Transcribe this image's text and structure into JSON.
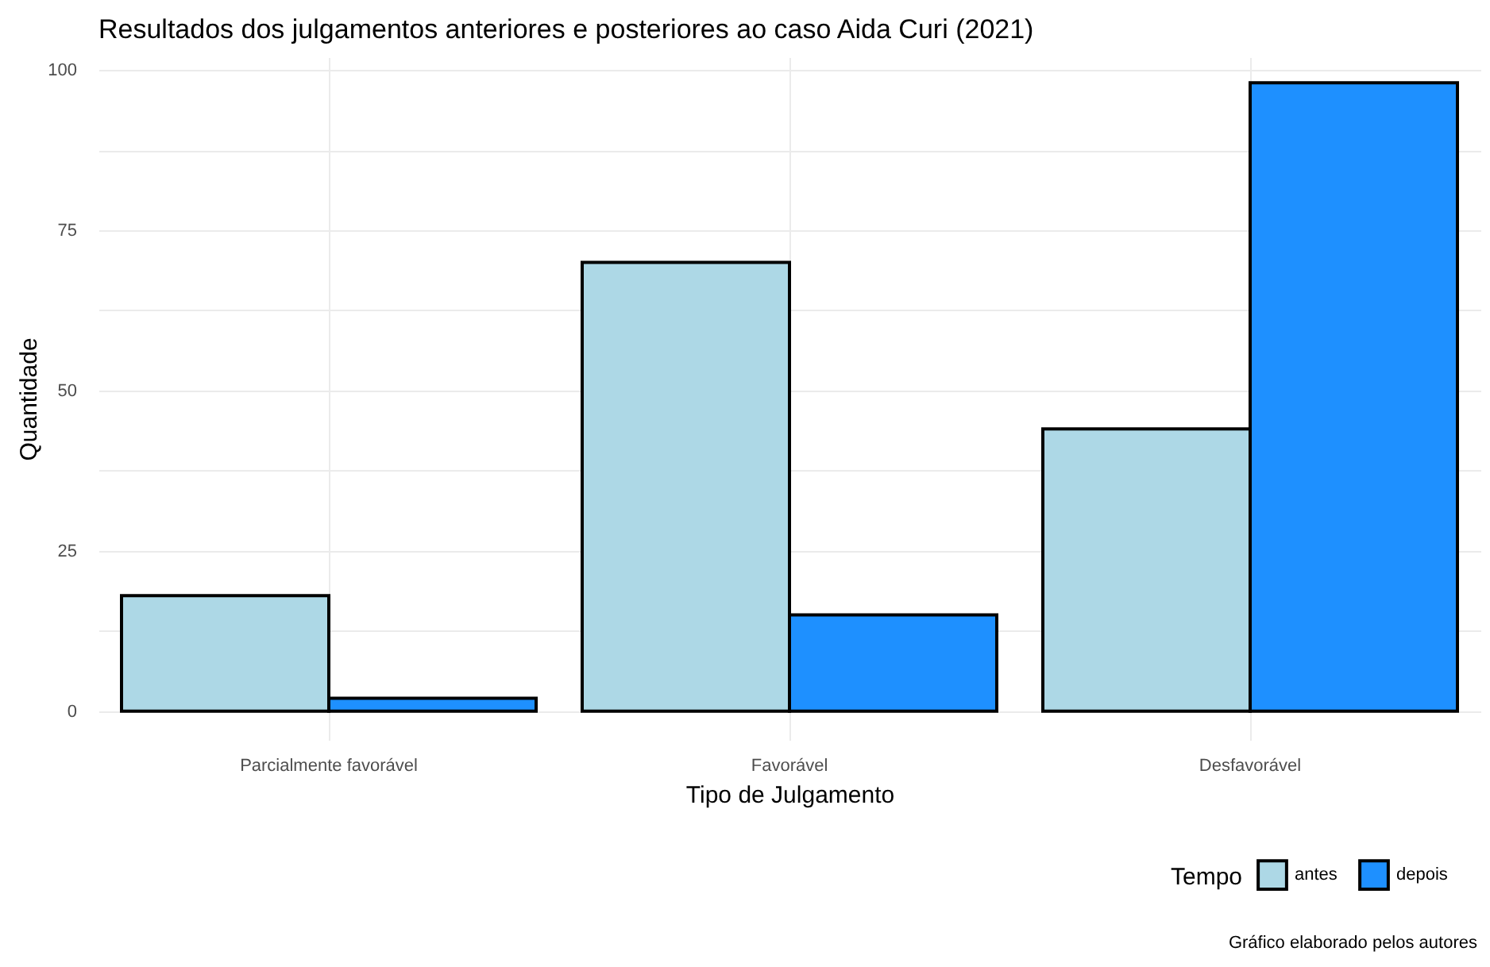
{
  "chart_data": {
    "type": "bar",
    "title": "Resultados dos julgamentos anteriores e posteriores ao caso Aida Curi (2021)",
    "xlabel": "Tipo de Julgamento",
    "ylabel": "Quantidade",
    "legend_title": "Tempo",
    "categories": [
      "Parcialmente favorável",
      "Favorável",
      "Desfavorável"
    ],
    "series": [
      {
        "name": "antes",
        "color": "#add8e6",
        "values": [
          18,
          70,
          44
        ]
      },
      {
        "name": "depois",
        "color": "#1e90ff",
        "values": [
          2,
          15,
          98
        ]
      }
    ],
    "ylim": [
      -4.5,
      102
    ],
    "yticks": [
      0,
      {
        "value": 12.5,
        "label": null
      },
      25,
      {
        "value": 37.5,
        "label": null
      },
      50,
      {
        "value": 62.5,
        "label": null
      },
      75,
      {
        "value": 87.5,
        "label": null
      },
      100
    ],
    "grid": true,
    "legend": "bottom right",
    "annotations": [
      "Gráfico elaborado pelos autores"
    ]
  }
}
